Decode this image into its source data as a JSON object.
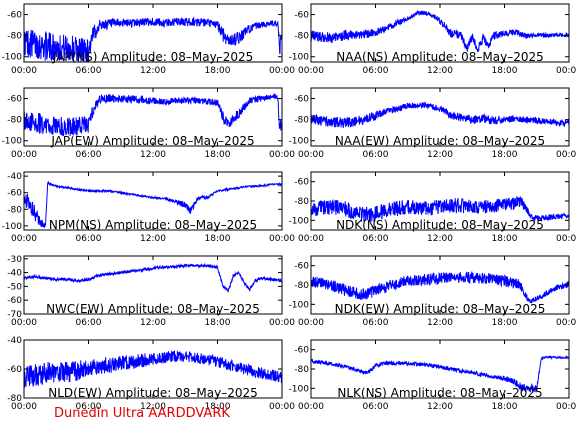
{
  "footer": {
    "text": "Dunedin Ultra AARDDVARK",
    "color": "#e00000"
  },
  "colors": {
    "trace": "#0000ff",
    "axis": "#000000"
  },
  "chart_data": [
    {
      "type": "line",
      "title": "JAP(NS) Amplitude: 08–May–2025",
      "xlim": [
        0,
        24
      ],
      "ylim": [
        -105,
        -50
      ],
      "yticks": [
        -100,
        -80,
        -60
      ],
      "xticklabels": [
        "00:00",
        "06:00",
        "12:00",
        "18:00",
        "00:00"
      ],
      "x": [
        0,
        1,
        2,
        3,
        4,
        5,
        6,
        6.5,
        7,
        8,
        9,
        10,
        11,
        12,
        13,
        14,
        15,
        16,
        17,
        18,
        18.5,
        19,
        20,
        21,
        22,
        23,
        23.6,
        23.8,
        24
      ],
      "y": [
        -86,
        -88,
        -90,
        -91,
        -92,
        -93,
        -94,
        -78,
        -70,
        -69,
        -68,
        -68,
        -67,
        -67,
        -68,
        -67,
        -67,
        -67,
        -68,
        -70,
        -78,
        -85,
        -82,
        -73,
        -70,
        -68,
        -69,
        -93,
        -78
      ],
      "band": [
        14,
        14,
        14,
        13,
        13,
        13,
        12,
        8,
        5,
        5,
        4,
        4,
        4,
        4,
        4,
        4,
        4,
        4,
        4,
        4,
        8,
        5,
        6,
        4,
        3,
        3,
        3,
        8,
        4
      ]
    },
    {
      "type": "line",
      "title": "NAA(NS) Amplitude: 08–May–2025",
      "xlim": [
        0,
        24
      ],
      "ylim": [
        -105,
        -50
      ],
      "yticks": [
        -100,
        -80,
        -60
      ],
      "xticklabels": [
        "00:00",
        "06:00",
        "12:00",
        "18:00",
        "00:00"
      ],
      "x": [
        0,
        1,
        2,
        3,
        4,
        5,
        6,
        7,
        8,
        9,
        10,
        11,
        12,
        12.5,
        13,
        14,
        14.5,
        15,
        15.5,
        16,
        16.5,
        17,
        18,
        19,
        20,
        21,
        22,
        23,
        24
      ],
      "y": [
        -80,
        -81,
        -82,
        -80,
        -79,
        -79,
        -77,
        -73,
        -68,
        -64,
        -58,
        -59,
        -66,
        -72,
        -78,
        -80,
        -93,
        -80,
        -94,
        -82,
        -90,
        -80,
        -78,
        -77,
        -80,
        -79,
        -80,
        -79,
        -80
      ],
      "band": [
        5,
        5,
        5,
        5,
        4,
        4,
        4,
        3,
        3,
        2,
        2,
        2,
        3,
        4,
        4,
        4,
        3,
        4,
        3,
        4,
        3,
        4,
        3,
        3,
        3,
        2,
        2,
        2,
        2
      ]
    },
    {
      "type": "line",
      "title": "JAP(EW) Amplitude: 08–May–2025",
      "xlim": [
        0,
        24
      ],
      "ylim": [
        -105,
        -50
      ],
      "yticks": [
        -100,
        -80,
        -60
      ],
      "xticklabels": [
        "00:00",
        "06:00",
        "12:00",
        "18:00",
        "00:00"
      ],
      "x": [
        0,
        1,
        2,
        3,
        4,
        5,
        6,
        6.5,
        7,
        8,
        9,
        10,
        11,
        12,
        13,
        14,
        15,
        16,
        17,
        18,
        18.5,
        19,
        20,
        21,
        22,
        23,
        23.6,
        23.8,
        24
      ],
      "y": [
        -80,
        -82,
        -85,
        -86,
        -87,
        -86,
        -85,
        -70,
        -60,
        -60,
        -60,
        -61,
        -61,
        -62,
        -63,
        -62,
        -62,
        -62,
        -63,
        -64,
        -78,
        -85,
        -74,
        -62,
        -60,
        -58,
        -58,
        -90,
        -80
      ],
      "band": [
        10,
        10,
        10,
        9,
        9,
        9,
        8,
        6,
        4,
        4,
        4,
        4,
        4,
        3,
        3,
        3,
        3,
        3,
        3,
        3,
        6,
        4,
        5,
        3,
        3,
        3,
        3,
        8,
        4
      ]
    },
    {
      "type": "line",
      "title": "NAA(EW) Amplitude: 08–May–2025",
      "xlim": [
        0,
        24
      ],
      "ylim": [
        -105,
        -50
      ],
      "yticks": [
        -100,
        -80,
        -60
      ],
      "xticklabels": [
        "00:00",
        "06:00",
        "12:00",
        "18:00",
        "00:00"
      ],
      "x": [
        0,
        1,
        2,
        3,
        4,
        5,
        6,
        7,
        8,
        9,
        10,
        11,
        12,
        13,
        14,
        15,
        16,
        17,
        18,
        19,
        20,
        21,
        22,
        23,
        24
      ],
      "y": [
        -80,
        -81,
        -82,
        -83,
        -82,
        -80,
        -76,
        -72,
        -70,
        -67,
        -66,
        -67,
        -70,
        -76,
        -78,
        -80,
        -79,
        -81,
        -80,
        -79,
        -80,
        -81,
        -82,
        -83,
        -83
      ],
      "band": [
        5,
        5,
        5,
        5,
        5,
        5,
        4,
        3,
        3,
        3,
        3,
        3,
        3,
        4,
        4,
        4,
        4,
        4,
        3,
        3,
        3,
        3,
        3,
        3,
        3
      ]
    },
    {
      "type": "line",
      "title": "NPM(NS) Amplitude: 08–May–2025",
      "xlim": [
        0,
        24
      ],
      "ylim": [
        -105,
        -35
      ],
      "yticks": [
        -100,
        -80,
        -60,
        -40
      ],
      "xticklabels": [
        "00:00",
        "06:00",
        "12:00",
        "18:00",
        "00:00"
      ],
      "x": [
        0,
        0.5,
        1,
        1.5,
        2,
        2.2,
        2.5,
        3,
        4,
        5,
        6,
        7,
        8,
        9,
        10,
        11,
        12,
        13,
        14,
        15,
        15.5,
        16,
        16.5,
        17,
        18,
        19,
        20,
        21,
        22,
        23,
        24
      ],
      "y": [
        -65,
        -75,
        -85,
        -95,
        -100,
        -48,
        -50,
        -52,
        -54,
        -56,
        -58,
        -58,
        -58,
        -60,
        -62,
        -64,
        -66,
        -67,
        -70,
        -75,
        -82,
        -70,
        -64,
        -66,
        -58,
        -56,
        -54,
        -52,
        -52,
        -50,
        -50
      ],
      "band": [
        10,
        10,
        10,
        6,
        3,
        1,
        1,
        1,
        1,
        1,
        1,
        1,
        1,
        1,
        1,
        1,
        1,
        1,
        2,
        4,
        4,
        3,
        2,
        2,
        1,
        1,
        1,
        1,
        1,
        1,
        1
      ]
    },
    {
      "type": "line",
      "title": "NDK(NS) Amplitude: 08–May–2025",
      "xlim": [
        0,
        24
      ],
      "ylim": [
        -110,
        -50
      ],
      "yticks": [
        -100,
        -80,
        -60
      ],
      "xticklabels": [
        "00:00",
        "06:00",
        "12:00",
        "18:00",
        "00:00"
      ],
      "x": [
        0,
        1,
        2,
        3,
        4,
        5,
        6,
        7,
        8,
        9,
        10,
        11,
        12,
        13,
        14,
        15,
        16,
        17,
        18,
        19,
        19.5,
        20,
        20.5,
        21,
        22,
        23,
        24
      ],
      "y": [
        -88,
        -87,
        -86,
        -87,
        -92,
        -94,
        -93,
        -90,
        -88,
        -86,
        -87,
        -88,
        -86,
        -85,
        -85,
        -86,
        -86,
        -85,
        -84,
        -82,
        -80,
        -88,
        -96,
        -98,
        -97,
        -96,
        -96
      ],
      "band": [
        8,
        8,
        8,
        8,
        8,
        8,
        8,
        8,
        8,
        8,
        8,
        8,
        8,
        8,
        8,
        7,
        7,
        7,
        7,
        7,
        6,
        4,
        3,
        3,
        3,
        3,
        3
      ]
    },
    {
      "type": "line",
      "title": "NWC(EW) Amplitude: 08–May–2025",
      "xlim": [
        0,
        24
      ],
      "ylim": [
        -70,
        -28
      ],
      "yticks": [
        -70,
        -60,
        -50,
        -40,
        -30
      ],
      "xticklabels": [
        "00:00",
        "06:00",
        "12:00",
        "18:00",
        "00:00"
      ],
      "x": [
        0,
        1,
        2,
        3,
        4,
        5,
        6,
        7,
        8,
        9,
        10,
        11,
        12,
        13,
        14,
        15,
        16,
        17,
        18,
        18.5,
        19,
        19.5,
        20,
        20.5,
        21,
        21.5,
        22,
        23,
        24
      ],
      "y": [
        -44,
        -43,
        -44,
        -45,
        -45,
        -46,
        -45,
        -42,
        -41,
        -40,
        -39,
        -38,
        -37,
        -36,
        -36,
        -35,
        -35,
        -35,
        -36,
        -50,
        -53,
        -42,
        -40,
        -48,
        -52,
        -46,
        -44,
        -45,
        -46
      ],
      "band": [
        1,
        1,
        1,
        1,
        1,
        1,
        1,
        1,
        1,
        1,
        1,
        1,
        1,
        1,
        1,
        1,
        1,
        1,
        1,
        1,
        1,
        1,
        1,
        1,
        1,
        1,
        1,
        1,
        1
      ]
    },
    {
      "type": "line",
      "title": "NDK(EW) Amplitude: 08–May–2025",
      "xlim": [
        0,
        24
      ],
      "ylim": [
        -110,
        -50
      ],
      "yticks": [
        -100,
        -80,
        -60
      ],
      "xticklabels": [
        "00:00",
        "06:00",
        "12:00",
        "18:00",
        "00:00"
      ],
      "x": [
        0,
        1,
        2,
        3,
        4,
        5,
        6,
        7,
        8,
        9,
        10,
        11,
        12,
        13,
        14,
        15,
        16,
        17,
        18,
        19,
        19.5,
        20,
        20.5,
        21,
        22,
        23,
        24
      ],
      "y": [
        -76,
        -78,
        -80,
        -85,
        -88,
        -90,
        -86,
        -82,
        -78,
        -76,
        -75,
        -74,
        -73,
        -72,
        -72,
        -72,
        -73,
        -74,
        -76,
        -78,
        -80,
        -92,
        -97,
        -94,
        -88,
        -82,
        -80
      ],
      "band": [
        6,
        6,
        6,
        6,
        6,
        6,
        6,
        6,
        6,
        6,
        6,
        6,
        6,
        6,
        6,
        6,
        6,
        6,
        6,
        6,
        5,
        4,
        3,
        3,
        3,
        3,
        3
      ]
    },
    {
      "type": "line",
      "title": "NLD(EW) Amplitude: 08–May–2025",
      "xlim": [
        0,
        24
      ],
      "ylim": [
        -80,
        -40
      ],
      "yticks": [
        -80,
        -60,
        -40
      ],
      "xticklabels": [
        "00:00",
        "06:00",
        "12:00",
        "18:00",
        "00:00"
      ],
      "x": [
        0,
        1,
        2,
        3,
        4,
        5,
        6,
        7,
        8,
        9,
        10,
        11,
        12,
        13,
        14,
        15,
        16,
        17,
        18,
        19,
        20,
        21,
        22,
        23,
        24
      ],
      "y": [
        -66,
        -64,
        -63,
        -62,
        -62,
        -61,
        -60,
        -58,
        -57,
        -56,
        -55,
        -54,
        -53,
        -52,
        -51,
        -51,
        -52,
        -53,
        -55,
        -57,
        -59,
        -61,
        -63,
        -64,
        -66
      ],
      "band": [
        8,
        8,
        8,
        7,
        7,
        7,
        6,
        6,
        6,
        5,
        5,
        5,
        4,
        4,
        4,
        4,
        4,
        4,
        4,
        4,
        4,
        4,
        4,
        4,
        4
      ]
    },
    {
      "type": "line",
      "title": "NLK(NS) Amplitude: 08–May–2025",
      "xlim": [
        0,
        24
      ],
      "ylim": [
        -110,
        -50
      ],
      "yticks": [
        -100,
        -80,
        -60
      ],
      "xticklabels": [
        "00:00",
        "06:00",
        "12:00",
        "18:00",
        "00:00"
      ],
      "x": [
        0,
        1,
        2,
        3,
        4,
        5,
        5.5,
        6,
        7,
        8,
        9,
        10,
        11,
        12,
        13,
        14,
        15,
        16,
        17,
        18,
        19,
        19.5,
        20,
        21,
        21.4,
        21.6,
        22,
        23,
        24
      ],
      "y": [
        -72,
        -73,
        -75,
        -77,
        -80,
        -84,
        -82,
        -76,
        -74,
        -74,
        -74,
        -75,
        -76,
        -78,
        -80,
        -82,
        -84,
        -86,
        -88,
        -90,
        -94,
        -98,
        -100,
        -100,
        -70,
        -68,
        -68,
        -68,
        -68
      ],
      "band": [
        2,
        2,
        2,
        2,
        2,
        2,
        2,
        2,
        2,
        2,
        2,
        2,
        2,
        2,
        2,
        2,
        2,
        2,
        2,
        3,
        4,
        4,
        4,
        4,
        1,
        1,
        1,
        1,
        1
      ]
    }
  ]
}
